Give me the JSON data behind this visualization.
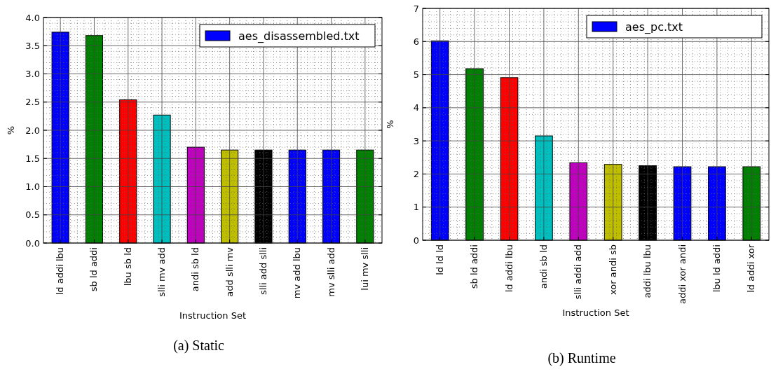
{
  "chart_data": [
    {
      "type": "bar",
      "categories": [
        "ld addi lbu",
        "sb ld addi",
        "lbu sb ld",
        "slli mv add",
        "andi sb ld",
        "add slli mv",
        "slli add slli",
        "mv add lbu",
        "mv slli add",
        "lui mv slli"
      ],
      "series": [
        {
          "name": "aes_disassembled.txt",
          "values": [
            3.74,
            3.68,
            2.54,
            2.27,
            1.7,
            1.65,
            1.65,
            1.65,
            1.65,
            1.65
          ],
          "colors": [
            "#0000ff",
            "#008000",
            "#ff0000",
            "#00bfbf",
            "#bf00bf",
            "#bfbf00",
            "#000000",
            "#0000ff",
            "#0000ff",
            "#008000"
          ]
        }
      ],
      "ylim": [
        0,
        4
      ],
      "yticks": [
        {
          "value": 0,
          "label": "0.0"
        },
        {
          "value": 0.5,
          "label": "0.5"
        },
        {
          "value": 1,
          "label": "1.0"
        },
        {
          "value": 1.5,
          "label": "1.5"
        },
        {
          "value": 2,
          "label": "2.0"
        },
        {
          "value": 2.5,
          "label": "2.5"
        },
        {
          "value": 3,
          "label": "3.0"
        },
        {
          "value": 3.5,
          "label": "3.5"
        },
        {
          "value": 4,
          "label": "4.0"
        }
      ],
      "xlabel": "Instruction Set",
      "ylabel": "%",
      "grid": true,
      "legend": "top right",
      "annotations": [
        "(a) Static"
      ]
    },
    {
      "type": "bar",
      "categories": [
        "ld ld ld",
        "sb ld addi",
        "ld addi lbu",
        "andi sb ld",
        "slli addi add",
        "xor andi sb",
        "addi lbu lbu",
        "addi xor andi",
        "lbu ld addi",
        "ld addi xor"
      ],
      "series": [
        {
          "name": "aes_pc.txt",
          "values": [
            6.02,
            5.18,
            4.91,
            3.15,
            2.34,
            2.29,
            2.25,
            2.22,
            2.22,
            2.22
          ],
          "colors": [
            "#0000ff",
            "#008000",
            "#ff0000",
            "#00bfbf",
            "#bf00bf",
            "#bfbf00",
            "#000000",
            "#0000ff",
            "#0000ff",
            "#008000"
          ]
        }
      ],
      "ylim": [
        0,
        7
      ],
      "yticks": [
        0,
        1,
        2,
        3,
        4,
        5,
        6,
        7
      ],
      "xlabel": "Instruction Set",
      "ylabel": "%",
      "grid": true,
      "legend": "top right",
      "annotations": [
        "(b) Runtime"
      ]
    }
  ]
}
